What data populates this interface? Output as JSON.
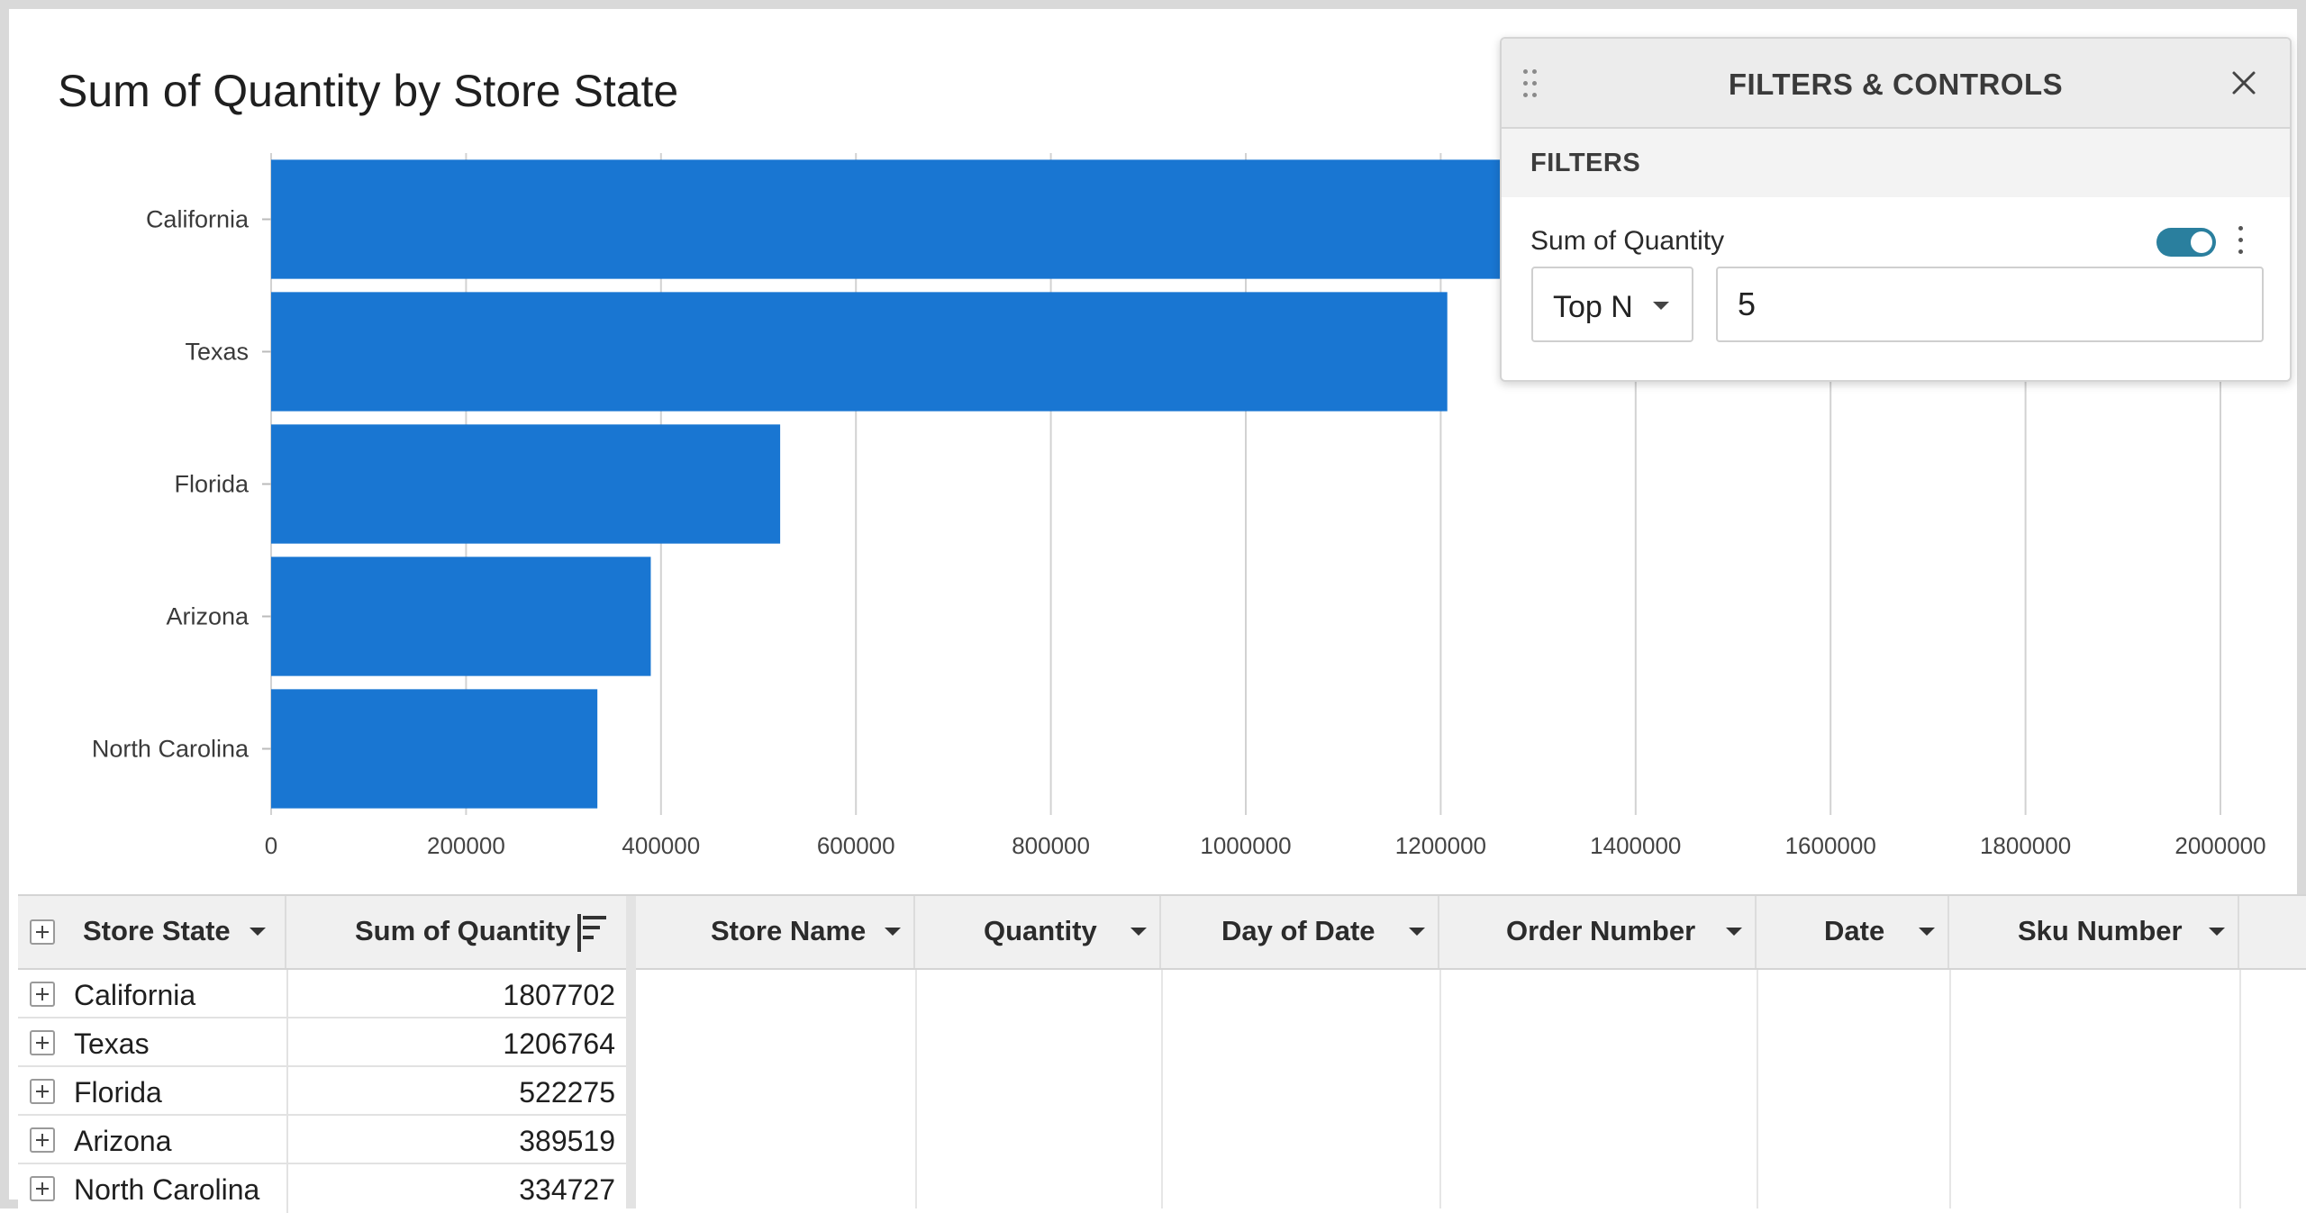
{
  "chart_data": {
    "type": "bar",
    "orientation": "horizontal",
    "title": "Sum of Quantity by Store State",
    "xlabel": "",
    "ylabel": "",
    "categories": [
      "California",
      "Texas",
      "Florida",
      "Arizona",
      "North Carolina"
    ],
    "values": [
      1807702,
      1206764,
      522275,
      389519,
      334727
    ],
    "xlim": [
      0,
      2000000
    ],
    "x_ticks": [
      "0",
      "200000",
      "400000",
      "600000",
      "800000",
      "1000000",
      "1200000",
      "1400000",
      "1600000",
      "1800000",
      "2000000"
    ],
    "grid": true,
    "bar_color": "#1976d2"
  },
  "filters_panel": {
    "title": "FILTERS & CONTROLS",
    "section_label": "FILTERS",
    "filter": {
      "name": "Sum of Quantity",
      "enabled": true,
      "mode": "Top N",
      "value": "5"
    },
    "toggle_color": "#2a7f9e"
  },
  "table": {
    "grouping_columns": [
      {
        "label": "Store State"
      },
      {
        "label": "Sum of Quantity"
      }
    ],
    "detail_columns": [
      {
        "label": "Store Name"
      },
      {
        "label": "Quantity"
      },
      {
        "label": "Day of Date"
      },
      {
        "label": "Order Number"
      },
      {
        "label": "Date"
      },
      {
        "label": "Sku Number"
      }
    ],
    "rows": [
      {
        "state": "California",
        "sum": "1807702"
      },
      {
        "state": "Texas",
        "sum": "1206764"
      },
      {
        "state": "Florida",
        "sum": "522275"
      },
      {
        "state": "Arizona",
        "sum": "389519"
      },
      {
        "state": "North Carolina",
        "sum": "334727"
      }
    ]
  }
}
